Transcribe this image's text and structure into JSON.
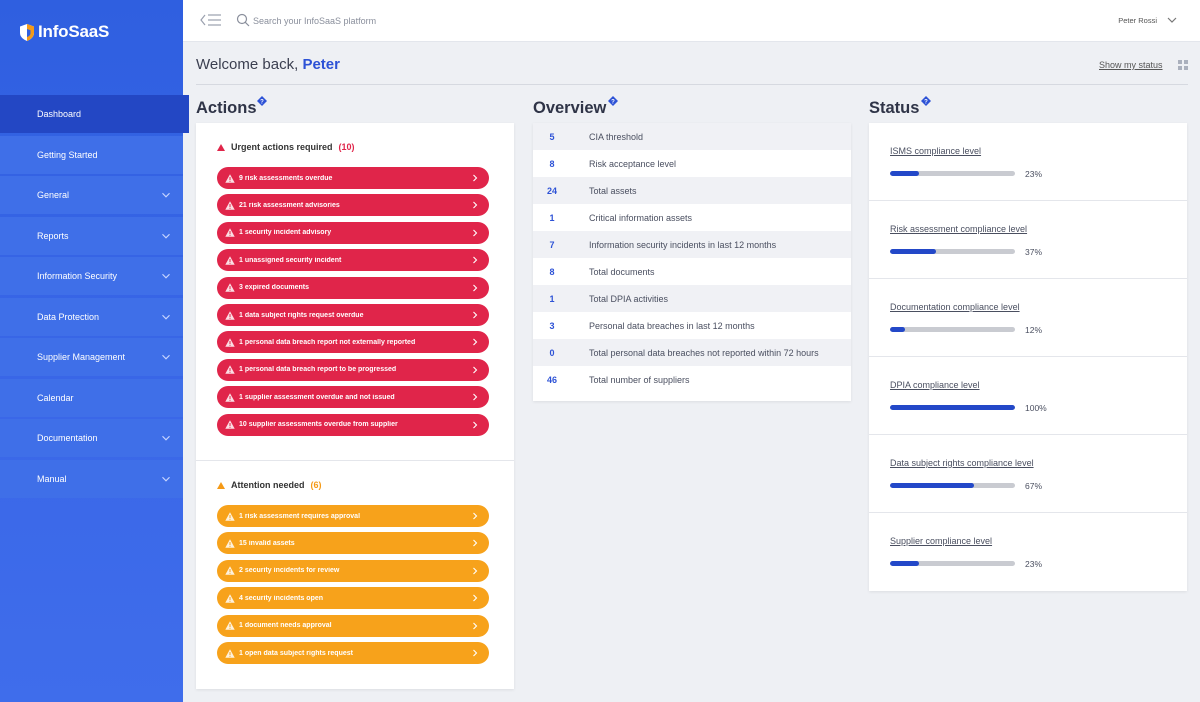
{
  "brand": {
    "name": "InfoSaaS"
  },
  "sidebar": {
    "items": [
      {
        "label": "Dashboard",
        "active": true,
        "chevron": false,
        "name": "sidebar-item-dashboard"
      },
      {
        "label": "Getting Started",
        "active": false,
        "chevron": false,
        "name": "sidebar-item-getting-started"
      },
      {
        "label": "General",
        "active": false,
        "chevron": true,
        "name": "sidebar-item-general"
      },
      {
        "label": "Reports",
        "active": false,
        "chevron": true,
        "name": "sidebar-item-reports"
      },
      {
        "label": "Information Security",
        "active": false,
        "chevron": true,
        "name": "sidebar-item-information-security"
      },
      {
        "label": "Data Protection",
        "active": false,
        "chevron": true,
        "name": "sidebar-item-data-protection"
      },
      {
        "label": "Supplier Management",
        "active": false,
        "chevron": true,
        "name": "sidebar-item-supplier-management"
      },
      {
        "label": "Calendar",
        "active": false,
        "chevron": false,
        "name": "sidebar-item-calendar"
      },
      {
        "label": "Documentation",
        "active": false,
        "chevron": true,
        "name": "sidebar-item-documentation"
      },
      {
        "label": "Manual",
        "active": false,
        "chevron": true,
        "name": "sidebar-item-manual"
      }
    ]
  },
  "topbar": {
    "search_placeholder": "Search your InfoSaaS platform",
    "user_name": "Peter Rossi"
  },
  "welcome": {
    "prefix": "Welcome back,",
    "name": "Peter"
  },
  "show_status_label": "Show my status",
  "sections": {
    "actions": "Actions",
    "overview": "Overview",
    "status": "Status"
  },
  "actions": {
    "urgent": {
      "title": "Urgent actions required",
      "count": "(10)",
      "items": [
        "9 risk assessments overdue",
        "21 risk assessment advisories",
        "1 security incident advisory",
        "1 unassigned security incident",
        "3 expired documents",
        "1 data subject rights request overdue",
        "1 personal data breach report not externally reported",
        "1 personal data breach report to be progressed",
        "1 supplier assessment overdue and not issued",
        "10 supplier assessments overdue from supplier"
      ]
    },
    "attention": {
      "title": "Attention needed",
      "count": "(6)",
      "items": [
        "1 risk assessment requires approval",
        "15 invalid assets",
        "2 security incidents for review",
        "4 security incidents open",
        "1 document needs approval",
        "1 open data subject rights request"
      ]
    }
  },
  "overview": {
    "rows": [
      {
        "value": "5",
        "label": "CIA threshold"
      },
      {
        "value": "8",
        "label": "Risk acceptance level"
      },
      {
        "value": "24",
        "label": "Total assets"
      },
      {
        "value": "1",
        "label": "Critical information assets"
      },
      {
        "value": "7",
        "label": "Information security incidents in last 12 months"
      },
      {
        "value": "8",
        "label": "Total documents"
      },
      {
        "value": "1",
        "label": "Total DPIA activities"
      },
      {
        "value": "3",
        "label": "Personal data breaches in last 12 months"
      },
      {
        "value": "0",
        "label": "Total personal data breaches not reported within 72 hours"
      },
      {
        "value": "46",
        "label": "Total number of suppliers"
      }
    ]
  },
  "status": {
    "items": [
      {
        "label": "ISMS compliance level",
        "percent": 23,
        "percent_label": "23%"
      },
      {
        "label": "Risk assessment compliance level",
        "percent": 37,
        "percent_label": "37%"
      },
      {
        "label": "Documentation compliance level",
        "percent": 12,
        "percent_label": "12%"
      },
      {
        "label": "DPIA compliance level",
        "percent": 100,
        "percent_label": "100%"
      },
      {
        "label": "Data subject rights compliance level",
        "percent": 67,
        "percent_label": "67%"
      },
      {
        "label": "Supplier compliance level",
        "percent": 23,
        "percent_label": "23%"
      }
    ]
  },
  "colors": {
    "accent": "#2d52d6",
    "urgent": "#e0254a",
    "attention": "#f7a21b",
    "progress": "#2348c8"
  }
}
